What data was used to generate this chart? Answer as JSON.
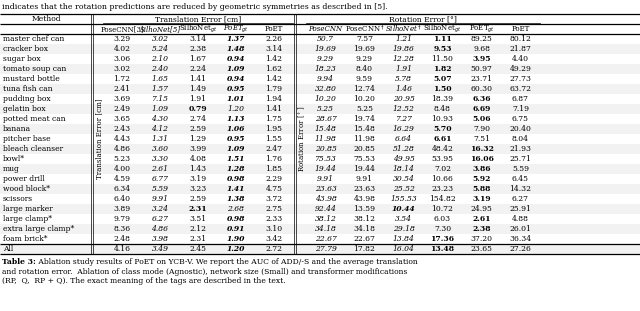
{
  "header_text": "indicates that the rotation predictions are reduced by geometric symmetries as described in [5].",
  "caption_bold": "Table 3:",
  "caption_rest": " Ablation study results of PoET on YCB-V. We report the AUC of ADD/-S and the average translation",
  "caption_line2": "and rotation error.  Ablation of class mode (Agnostic), network size (Small) and transformer modifications",
  "caption_line3": "(RP,  Q,  RP + Q). The exact meaning of the tags are described in the text.",
  "trans_header": "Translation Error [cm]",
  "rot_header": "Rotation Error [°]",
  "trans_col_names": [
    "PoseCNN[3]",
    "SilhoNet[5]",
    "SilhoNet_gt",
    "PoET_gt",
    "PoET"
  ],
  "rot_col_names": [
    "PoseCNN",
    "PoseCNN_dag",
    "SilhoNet_dag",
    "SilhoNet_gt",
    "PoET_gt",
    "PoET"
  ],
  "rows": [
    {
      "method": "master chef can",
      "trans": [
        "3.29",
        "3.02",
        "3.14",
        "1.37",
        "2.26"
      ],
      "rot": [
        "50.7",
        "7.57",
        "1.21",
        "1.11",
        "89.25",
        "80.12"
      ],
      "tb": 3,
      "rb": 3
    },
    {
      "method": "cracker box",
      "trans": [
        "4.02",
        "5.24",
        "2.38",
        "1.48",
        "3.14"
      ],
      "rot": [
        "19.69",
        "19.69",
        "19.86",
        "9.53",
        "9.68",
        "21.87"
      ],
      "tb": 3,
      "rb": 3
    },
    {
      "method": "sugar box",
      "trans": [
        "3.06",
        "2.10",
        "1.67",
        "0.94",
        "1.42"
      ],
      "rot": [
        "9.29",
        "9.29",
        "12.28",
        "11.50",
        "3.95",
        "4.40"
      ],
      "tb": 3,
      "rb": 4
    },
    {
      "method": "tomato soup can",
      "trans": [
        "3.02",
        "2.40",
        "2.24",
        "1.09",
        "1.62"
      ],
      "rot": [
        "18.23",
        "8.40",
        "1.91",
        "1.82",
        "50.97",
        "49.29"
      ],
      "tb": 3,
      "rb": 3
    },
    {
      "method": "mustard bottle",
      "trans": [
        "1.72",
        "1.65",
        "1.41",
        "0.94",
        "1.42"
      ],
      "rot": [
        "9.94",
        "9.59",
        "5.78",
        "5.07",
        "23.71",
        "27.73"
      ],
      "tb": 3,
      "rb": 3
    },
    {
      "method": "tuna fish can",
      "trans": [
        "2.41",
        "1.57",
        "1.49",
        "0.95",
        "1.79"
      ],
      "rot": [
        "32.80",
        "12.74",
        "1.46",
        "1.50",
        "60.30",
        "63.72"
      ],
      "tb": 3,
      "rb": 3
    },
    {
      "method": "pudding box",
      "trans": [
        "3.69",
        "7.15",
        "1.91",
        "1.01",
        "1.94"
      ],
      "rot": [
        "10.20",
        "10.20",
        "20.95",
        "18.39",
        "6.36",
        "6.87"
      ],
      "tb": 3,
      "rb": 4
    },
    {
      "method": "gelatin box",
      "trans": [
        "2.49",
        "1.09",
        "0.79",
        "1.20",
        "1.41"
      ],
      "rot": [
        "5.25",
        "5.25",
        "12.52",
        "8.48",
        "6.69",
        "7.19"
      ],
      "tb": 2,
      "rb": 4
    },
    {
      "method": "potted meat can",
      "trans": [
        "3.65",
        "4.30",
        "2.74",
        "1.13",
        "1.75"
      ],
      "rot": [
        "28.67",
        "19.74",
        "7.27",
        "10.93",
        "5.06",
        "6.75"
      ],
      "tb": 3,
      "rb": 4
    },
    {
      "method": "banana",
      "trans": [
        "2.43",
        "4.12",
        "2.59",
        "1.06",
        "1.95"
      ],
      "rot": [
        "15.48",
        "15.48",
        "16.29",
        "5.70",
        "7.90",
        "20.40"
      ],
      "tb": 3,
      "rb": 3
    },
    {
      "method": "pitcher base",
      "trans": [
        "4.43",
        "1.31",
        "1.29",
        "0.95",
        "1.55"
      ],
      "rot": [
        "11.98",
        "11.98",
        "6.64",
        "6.61",
        "7.51",
        "8.04"
      ],
      "tb": 3,
      "rb": 3
    },
    {
      "method": "bleach cleanser",
      "trans": [
        "4.86",
        "3.60",
        "3.99",
        "1.09",
        "2.47"
      ],
      "rot": [
        "20.85",
        "20.85",
        "51.28",
        "48.42",
        "16.32",
        "21.93"
      ],
      "tb": 3,
      "rb": 4
    },
    {
      "method": "bowl*",
      "trans": [
        "5.23",
        "3.30",
        "4.08",
        "1.51",
        "1.76"
      ],
      "rot": [
        "75.53",
        "75.53",
        "49.95",
        "53.95",
        "16.06",
        "25.71"
      ],
      "tb": 3,
      "rb": 4
    },
    {
      "method": "mug",
      "trans": [
        "4.00",
        "2.61",
        "1.43",
        "1.28",
        "1.85"
      ],
      "rot": [
        "19.44",
        "19.44",
        "18.14",
        "7.02",
        "3.86",
        "5.59"
      ],
      "tb": 3,
      "rb": 4
    },
    {
      "method": "power drill",
      "trans": [
        "4.59",
        "6.77",
        "3.19",
        "0.98",
        "2.29"
      ],
      "rot": [
        "9.91",
        "9.91",
        "30.54",
        "10.66",
        "5.92",
        "6.45"
      ],
      "tb": 3,
      "rb": 4
    },
    {
      "method": "wood block*",
      "trans": [
        "6.34",
        "5.59",
        "3.23",
        "1.41",
        "4.75"
      ],
      "rot": [
        "23.63",
        "23.63",
        "25.52",
        "23.23",
        "5.88",
        "14.32"
      ],
      "tb": 3,
      "rb": 4
    },
    {
      "method": "scissors",
      "trans": [
        "6.40",
        "9.91",
        "2.59",
        "1.38",
        "3.72"
      ],
      "rot": [
        "43.98",
        "43.98",
        "155.53",
        "154.82",
        "3.19",
        "6.27"
      ],
      "tb": 3,
      "rb": 4
    },
    {
      "method": "large marker",
      "trans": [
        "3.89",
        "3.24",
        "2.31",
        "2.68",
        "2.75"
      ],
      "rot": [
        "92.44",
        "13.59",
        "10.44",
        "10.72",
        "24.95",
        "25.91"
      ],
      "tb": 2,
      "rb": 2
    },
    {
      "method": "large clamp*",
      "trans": [
        "9.79",
        "6.27",
        "3.51",
        "0.98",
        "2.33"
      ],
      "rot": [
        "38.12",
        "38.12",
        "3.54",
        "6.03",
        "2.61",
        "4.88"
      ],
      "tb": 3,
      "rb": 4
    },
    {
      "method": "extra large clamp*",
      "trans": [
        "8.36",
        "4.86",
        "2.12",
        "0.91",
        "3.10"
      ],
      "rot": [
        "34.18",
        "34.18",
        "29.18",
        "7.30",
        "2.38",
        "26.01"
      ],
      "tb": 3,
      "rb": 4
    },
    {
      "method": "foam brick*",
      "trans": [
        "2.48",
        "3.98",
        "2.31",
        "1.90",
        "3.42"
      ],
      "rot": [
        "22.67",
        "22.67",
        "13.84",
        "17.36",
        "37.20",
        "36.34"
      ],
      "tb": 3,
      "rb": 3
    },
    {
      "method": "All",
      "trans": [
        "4.16",
        "3.49",
        "2.45",
        "1.20",
        "2.72"
      ],
      "rot": [
        "27.79",
        "17.82",
        "16.04",
        "13.48",
        "23.65",
        "27.26"
      ],
      "tb": 3,
      "rb": 3
    }
  ],
  "trans_italic_cols": [
    1,
    3
  ],
  "rot_italic_cols": [
    0,
    2
  ],
  "bg_color": "#ffffff"
}
